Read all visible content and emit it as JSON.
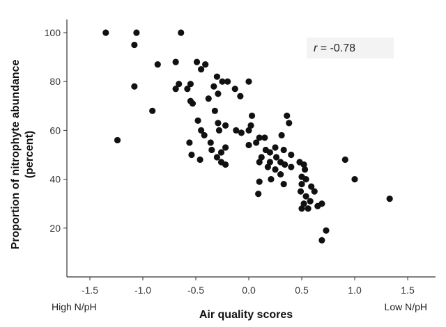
{
  "chart_data": {
    "type": "scatter",
    "xlabel": "Air quality scores",
    "ylabel_line1": "Proportion of nitrophyte abundance",
    "ylabel_line2": "(percent)",
    "xlim": [
      -1.75,
      1.75
    ],
    "ylim": [
      0,
      105
    ],
    "x_ticks": [
      -1.5,
      -1.0,
      -0.5,
      0.0,
      0.5,
      1.0,
      1.5
    ],
    "x_tick_labels": [
      "-1.5",
      "-1.0",
      "-0.5",
      "0.0",
      "0.5",
      "1.0",
      "1.5"
    ],
    "y_ticks": [
      20,
      40,
      60,
      80,
      100
    ],
    "y_tick_labels": [
      "20",
      "40",
      "60",
      "80",
      "100"
    ],
    "x_end_labels": {
      "left": "High N/pH",
      "right": "Low N/pH"
    },
    "annotation": {
      "r_symbol": "r",
      "r_value": " = -0.78"
    },
    "grid": false,
    "points": [
      {
        "x": -1.35,
        "y": 100
      },
      {
        "x": -1.06,
        "y": 100
      },
      {
        "x": -0.64,
        "y": 100
      },
      {
        "x": -1.08,
        "y": 95
      },
      {
        "x": -0.86,
        "y": 87
      },
      {
        "x": -0.69,
        "y": 88
      },
      {
        "x": -0.49,
        "y": 88
      },
      {
        "x": -0.41,
        "y": 87
      },
      {
        "x": -0.45,
        "y": 85
      },
      {
        "x": -1.08,
        "y": 78
      },
      {
        "x": -0.66,
        "y": 79
      },
      {
        "x": -0.69,
        "y": 77
      },
      {
        "x": -0.58,
        "y": 77
      },
      {
        "x": -0.55,
        "y": 79
      },
      {
        "x": -0.3,
        "y": 82
      },
      {
        "x": -0.25,
        "y": 80
      },
      {
        "x": -0.2,
        "y": 80
      },
      {
        "x": -0.33,
        "y": 78
      },
      {
        "x": -0.13,
        "y": 77
      },
      {
        "x": -0.29,
        "y": 75
      },
      {
        "x": -0.38,
        "y": 73
      },
      {
        "x": 0.0,
        "y": 80
      },
      {
        "x": -0.08,
        "y": 74
      },
      {
        "x": -0.55,
        "y": 72
      },
      {
        "x": -0.53,
        "y": 71
      },
      {
        "x": -0.91,
        "y": 68
      },
      {
        "x": -0.32,
        "y": 68
      },
      {
        "x": -0.48,
        "y": 64
      },
      {
        "x": 0.03,
        "y": 66
      },
      {
        "x": -0.29,
        "y": 63
      },
      {
        "x": 0.02,
        "y": 62
      },
      {
        "x": 0.0,
        "y": 60
      },
      {
        "x": -0.12,
        "y": 60
      },
      {
        "x": -0.07,
        "y": 59
      },
      {
        "x": -0.22,
        "y": 62
      },
      {
        "x": -0.45,
        "y": 60
      },
      {
        "x": -0.42,
        "y": 58
      },
      {
        "x": -0.28,
        "y": 60
      },
      {
        "x": 0.36,
        "y": 66
      },
      {
        "x": 0.38,
        "y": 63
      },
      {
        "x": 0.31,
        "y": 58
      },
      {
        "x": 0.1,
        "y": 57
      },
      {
        "x": 0.15,
        "y": 57
      },
      {
        "x": 0.07,
        "y": 55
      },
      {
        "x": 0.0,
        "y": 54
      },
      {
        "x": -1.24,
        "y": 56
      },
      {
        "x": -0.56,
        "y": 55
      },
      {
        "x": -0.36,
        "y": 55
      },
      {
        "x": -0.35,
        "y": 52
      },
      {
        "x": -0.22,
        "y": 53
      },
      {
        "x": -0.26,
        "y": 51
      },
      {
        "x": -0.54,
        "y": 50
      },
      {
        "x": -0.46,
        "y": 48
      },
      {
        "x": -0.3,
        "y": 49
      },
      {
        "x": -0.26,
        "y": 47
      },
      {
        "x": -0.22,
        "y": 46
      },
      {
        "x": 0.16,
        "y": 52
      },
      {
        "x": 0.2,
        "y": 51
      },
      {
        "x": 0.25,
        "y": 53
      },
      {
        "x": 0.26,
        "y": 49
      },
      {
        "x": 0.33,
        "y": 52
      },
      {
        "x": 0.4,
        "y": 50
      },
      {
        "x": 0.12,
        "y": 49
      },
      {
        "x": 0.1,
        "y": 47
      },
      {
        "x": 0.2,
        "y": 47
      },
      {
        "x": 0.3,
        "y": 47
      },
      {
        "x": 0.34,
        "y": 46
      },
      {
        "x": 0.4,
        "y": 45
      },
      {
        "x": 0.25,
        "y": 44
      },
      {
        "x": 0.18,
        "y": 45
      },
      {
        "x": 0.3,
        "y": 42
      },
      {
        "x": 0.1,
        "y": 39
      },
      {
        "x": 0.21,
        "y": 40
      },
      {
        "x": 0.33,
        "y": 38
      },
      {
        "x": 0.09,
        "y": 34
      },
      {
        "x": 0.48,
        "y": 47
      },
      {
        "x": 0.52,
        "y": 46
      },
      {
        "x": 0.53,
        "y": 44
      },
      {
        "x": 0.5,
        "y": 41
      },
      {
        "x": 0.54,
        "y": 40
      },
      {
        "x": 0.5,
        "y": 38
      },
      {
        "x": 0.59,
        "y": 37
      },
      {
        "x": 0.62,
        "y": 35
      },
      {
        "x": 0.49,
        "y": 35
      },
      {
        "x": 0.54,
        "y": 33
      },
      {
        "x": 0.58,
        "y": 31
      },
      {
        "x": 0.52,
        "y": 30
      },
      {
        "x": 0.5,
        "y": 28
      },
      {
        "x": 0.56,
        "y": 28
      },
      {
        "x": 0.65,
        "y": 29
      },
      {
        "x": 0.69,
        "y": 30
      },
      {
        "x": 0.73,
        "y": 19
      },
      {
        "x": 0.69,
        "y": 15
      },
      {
        "x": 0.91,
        "y": 48
      },
      {
        "x": 1.0,
        "y": 40
      },
      {
        "x": 1.33,
        "y": 32
      }
    ]
  }
}
